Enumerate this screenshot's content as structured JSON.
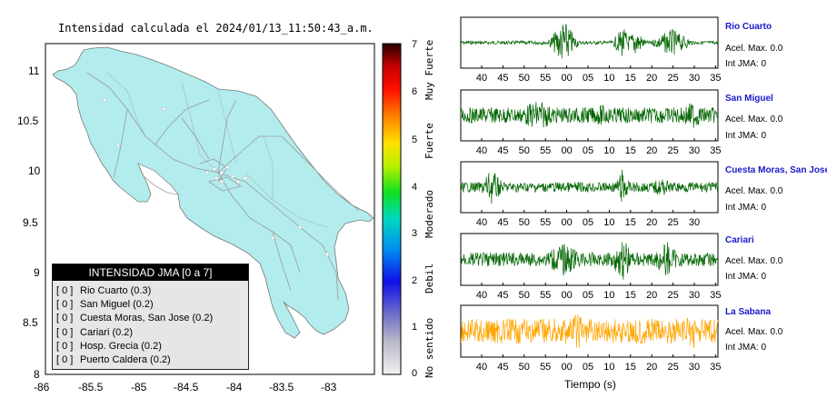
{
  "map": {
    "title": "Intensidad calculada el 2024/01/13_11:50:43_a.m.",
    "y_ticks": [
      "11",
      "10.5",
      "10",
      "9.5",
      "9",
      "8.5",
      "8"
    ],
    "x_ticks": [
      "-86",
      "-85.5",
      "-85",
      "-84.5",
      "-84",
      "-83.5",
      "-83"
    ],
    "colors": {
      "land": "#b2ecec",
      "roads": "#9a9a9a",
      "background": "#ffffff"
    }
  },
  "legend": {
    "title": "INTENSIDAD JMA [0 a 7]",
    "items": [
      {
        "level": "[ 0 ]",
        "name": "Rio Cuarto (0.3)"
      },
      {
        "level": "[ 0 ]",
        "name": "San Miguel (0.2)"
      },
      {
        "level": "[ 0 ]",
        "name": "Cuesta Moras, San Jose (0.2)"
      },
      {
        "level": "[ 0 ]",
        "name": "Cariari (0.2)"
      },
      {
        "level": "[ 0 ]",
        "name": "Hosp. Grecia (0.2)"
      },
      {
        "level": "[ 0 ]",
        "name": "Puerto Caldera (0.2)"
      }
    ]
  },
  "colorbar": {
    "ticks": [
      "7",
      "6",
      "5",
      "4",
      "3",
      "2",
      "1",
      "0"
    ],
    "categories": [
      "Muy Fuerte",
      "Fuerte",
      "Moderado",
      "Debil",
      "No sentido"
    ]
  },
  "stations": [
    {
      "name": "Rio Cuarto",
      "acc": "Acel. Max. 0.0",
      "int": "Int JMA: 0",
      "color": "#006400"
    },
    {
      "name": "San Miguel",
      "acc": "Acel. Max. 0.0",
      "int": "Int JMA: 0",
      "color": "#006400"
    },
    {
      "name": "Cuesta Moras, San Jose",
      "acc": "Acel. Max. 0.0",
      "int": "Int JMA: 0",
      "color": "#006400"
    },
    {
      "name": "Cariari",
      "acc": "Acel. Max. 0.0",
      "int": "Int JMA: 0",
      "color": "#006400"
    },
    {
      "name": "La Sabana",
      "acc": "Acel. Max. 0.0",
      "int": "Int JMA: 0",
      "color": "#ffa500"
    }
  ],
  "time_ticks": [
    "40",
    "45",
    "50",
    "55",
    "00",
    "05",
    "10",
    "15",
    "20",
    "25",
    "30",
    "35"
  ],
  "time_axis_label": "Tiempo (s)"
}
